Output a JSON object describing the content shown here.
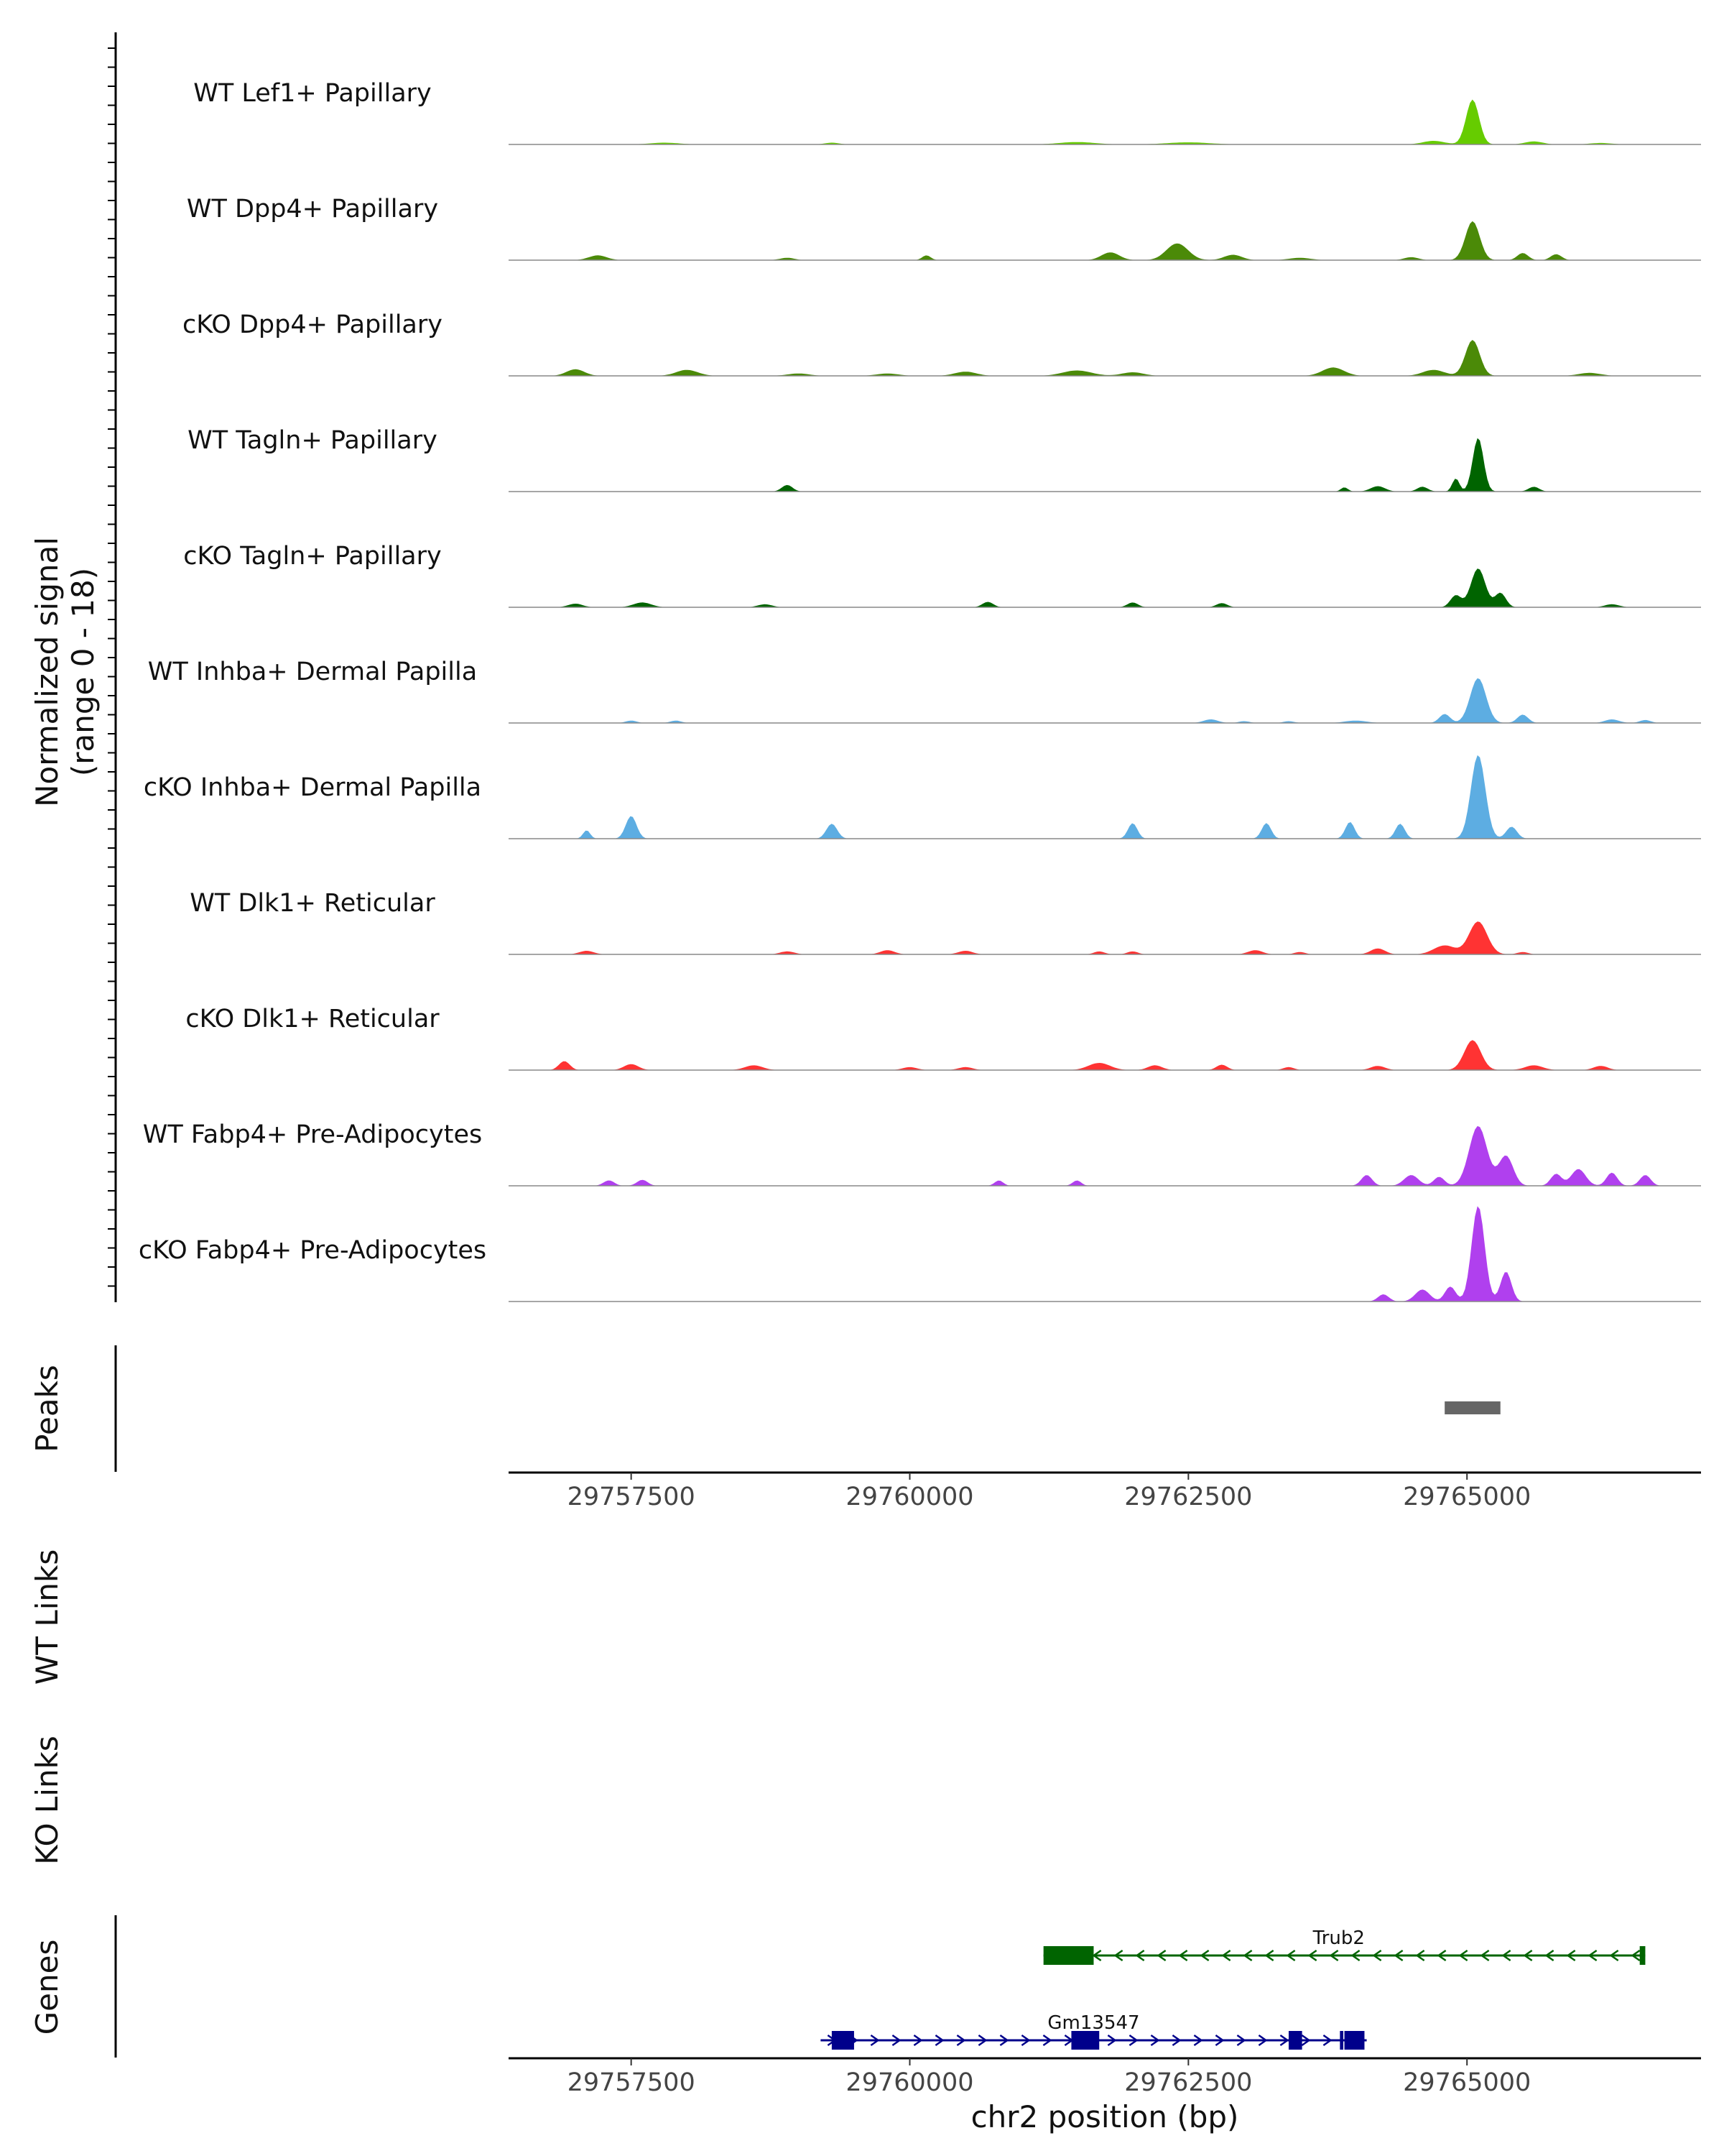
{
  "chart_data": {
    "type": "area",
    "title": "",
    "ylabel_line1": "Normalized signal",
    "ylabel_line2": "(range 0 - 18)",
    "ylim": [
      0,
      18
    ],
    "xlabel": "chr2 position (bp)",
    "xlim": [
      29756400,
      29767100
    ],
    "x_ticks": [
      29757500,
      29760000,
      29762500,
      29765000
    ],
    "x_tick_labels": [
      "29757500",
      "29760000",
      "29762500",
      "29765000"
    ],
    "tracks": [
      {
        "name": "WT Lef1+ Papillary",
        "color": "#66CC00",
        "peaks": [
          [
            29765050,
            7.5,
            180
          ],
          [
            29764700,
            0.6,
            300
          ],
          [
            29765600,
            0.5,
            250
          ],
          [
            29761500,
            0.4,
            500
          ],
          [
            29762500,
            0.35,
            600
          ],
          [
            29759300,
            0.3,
            200
          ],
          [
            29766200,
            0.25,
            300
          ],
          [
            29757800,
            0.3,
            400
          ]
        ]
      },
      {
        "name": "WT Dpp4+ Papillary",
        "color": "#4B8A08",
        "peaks": [
          [
            29765050,
            6.5,
            200
          ],
          [
            29762400,
            2.8,
            300
          ],
          [
            29761800,
            1.3,
            250
          ],
          [
            29765500,
            1.2,
            150
          ],
          [
            29765800,
            1.0,
            150
          ],
          [
            29757200,
            0.8,
            250
          ],
          [
            29760150,
            0.8,
            120
          ],
          [
            29762900,
            0.9,
            250
          ],
          [
            29758900,
            0.4,
            200
          ],
          [
            29764500,
            0.5,
            200
          ],
          [
            29763500,
            0.4,
            300
          ]
        ]
      },
      {
        "name": "cKO Dpp4+ Papillary",
        "color": "#4B8A08",
        "peaks": [
          [
            29765050,
            6.0,
            200
          ],
          [
            29763800,
            1.4,
            300
          ],
          [
            29757000,
            1.1,
            250
          ],
          [
            29758000,
            1.0,
            300
          ],
          [
            29761500,
            0.9,
            400
          ],
          [
            29764700,
            1.0,
            300
          ],
          [
            29760500,
            0.7,
            300
          ],
          [
            29762000,
            0.6,
            300
          ],
          [
            29759800,
            0.4,
            300
          ],
          [
            29766100,
            0.5,
            300
          ],
          [
            29759000,
            0.4,
            300
          ]
        ]
      },
      {
        "name": "WT Tagln+ Papillary",
        "color": "#006400",
        "peaks": [
          [
            29765100,
            9.0,
            150
          ],
          [
            29764900,
            2.2,
            100
          ],
          [
            29758900,
            1.1,
            150
          ],
          [
            29764200,
            0.9,
            200
          ],
          [
            29765600,
            0.8,
            150
          ],
          [
            29763900,
            0.7,
            100
          ],
          [
            29764600,
            0.8,
            150
          ]
        ]
      },
      {
        "name": "cKO Tagln+ Papillary",
        "color": "#006400",
        "peaks": [
          [
            29765100,
            6.5,
            200
          ],
          [
            29765300,
            2.4,
            150
          ],
          [
            29764900,
            2.0,
            150
          ],
          [
            29757600,
            0.8,
            250
          ],
          [
            29760700,
            0.9,
            150
          ],
          [
            29762000,
            0.8,
            150
          ],
          [
            29762800,
            0.7,
            150
          ],
          [
            29757000,
            0.6,
            200
          ],
          [
            29758700,
            0.5,
            200
          ],
          [
            29766300,
            0.5,
            200
          ]
        ]
      },
      {
        "name": "WT Inhba+ Dermal Papilla",
        "color": "#5DADE2",
        "peaks": [
          [
            29765100,
            7.5,
            220
          ],
          [
            29764800,
            1.5,
            150
          ],
          [
            29765500,
            1.4,
            150
          ],
          [
            29762700,
            0.6,
            200
          ],
          [
            29766300,
            0.6,
            200
          ],
          [
            29757500,
            0.4,
            150
          ],
          [
            29757900,
            0.4,
            150
          ],
          [
            29764000,
            0.4,
            300
          ],
          [
            29763400,
            0.3,
            150
          ],
          [
            29763000,
            0.3,
            150
          ],
          [
            29766600,
            0.5,
            150
          ]
        ]
      },
      {
        "name": "cKO Inhba+ Dermal Papilla",
        "color": "#5DADE2",
        "peaks": [
          [
            29765100,
            14.0,
            200
          ],
          [
            29765400,
            2.0,
            150
          ],
          [
            29757500,
            3.8,
            150
          ],
          [
            29762000,
            2.6,
            130
          ],
          [
            29763200,
            2.6,
            130
          ],
          [
            29763950,
            2.8,
            130
          ],
          [
            29764400,
            2.5,
            130
          ],
          [
            29759300,
            2.5,
            150
          ],
          [
            29757100,
            1.4,
            100
          ]
        ]
      },
      {
        "name": "WT Dlk1+ Reticular",
        "color": "#FF3333",
        "peaks": [
          [
            29765100,
            5.5,
            250
          ],
          [
            29764800,
            1.5,
            300
          ],
          [
            29764200,
            1.0,
            200
          ],
          [
            29759800,
            0.7,
            200
          ],
          [
            29760500,
            0.6,
            200
          ],
          [
            29763100,
            0.7,
            200
          ],
          [
            29757100,
            0.6,
            200
          ],
          [
            29761700,
            0.5,
            150
          ],
          [
            29762000,
            0.5,
            150
          ],
          [
            29758900,
            0.5,
            200
          ],
          [
            29763500,
            0.4,
            150
          ],
          [
            29765500,
            0.4,
            150
          ]
        ]
      },
      {
        "name": "cKO Dlk1+ Reticular",
        "color": "#FF3333",
        "peaks": [
          [
            29765050,
            5.0,
            230
          ],
          [
            29756900,
            1.5,
            150
          ],
          [
            29757500,
            1.0,
            200
          ],
          [
            29761700,
            1.2,
            300
          ],
          [
            29762200,
            0.8,
            200
          ],
          [
            29762800,
            0.9,
            150
          ],
          [
            29758600,
            0.8,
            250
          ],
          [
            29760500,
            0.5,
            200
          ],
          [
            29760000,
            0.5,
            200
          ],
          [
            29764200,
            0.7,
            200
          ],
          [
            29765600,
            0.8,
            250
          ],
          [
            29766200,
            0.7,
            200
          ],
          [
            29763400,
            0.5,
            150
          ]
        ]
      },
      {
        "name": "WT Fabp4+ Pre-Adipocytes",
        "color": "#B040EE",
        "peaks": [
          [
            29765100,
            10.0,
            250
          ],
          [
            29765350,
            5.0,
            200
          ],
          [
            29766000,
            2.8,
            200
          ],
          [
            29765800,
            2.0,
            150
          ],
          [
            29766300,
            2.2,
            150
          ],
          [
            29766600,
            1.8,
            150
          ],
          [
            29764500,
            1.8,
            200
          ],
          [
            29764100,
            1.8,
            150
          ],
          [
            29764750,
            1.5,
            150
          ],
          [
            29757300,
            0.9,
            150
          ],
          [
            29757600,
            1.0,
            150
          ],
          [
            29760800,
            0.9,
            120
          ],
          [
            29761500,
            0.9,
            120
          ]
        ]
      },
      {
        "name": "cKO Fabp4+ Pre-Adipocytes",
        "color": "#B040EE",
        "peaks": [
          [
            29765100,
            16.0,
            180
          ],
          [
            29765350,
            5.0,
            150
          ],
          [
            29764850,
            2.5,
            150
          ],
          [
            29764600,
            2.0,
            200
          ],
          [
            29764250,
            1.2,
            150
          ]
        ]
      }
    ],
    "peaks_track": {
      "label": "Peaks",
      "regions": [
        [
          29764800,
          29765300
        ]
      ],
      "color": "#666666"
    },
    "links_tracks": [
      {
        "label": "WT Links"
      },
      {
        "label": "KO Links"
      }
    ],
    "genes_track": {
      "label": "Genes",
      "genes": [
        {
          "name": "Trub2",
          "start": 29761200,
          "end": 29766600,
          "strand": "-",
          "color": "#006400",
          "exons": [
            [
              29761200,
              29761650
            ],
            [
              29766550,
              29766600
            ]
          ]
        },
        {
          "name": "Gm13547",
          "start": 29759200,
          "end": 29764100,
          "strand": "+",
          "color": "#00008B",
          "exons": [
            [
              29759300,
              29759500
            ],
            [
              29761450,
              29761700
            ],
            [
              29763400,
              29763520
            ],
            [
              29763860,
              29763890
            ],
            [
              29763900,
              29764080
            ]
          ]
        }
      ]
    }
  }
}
